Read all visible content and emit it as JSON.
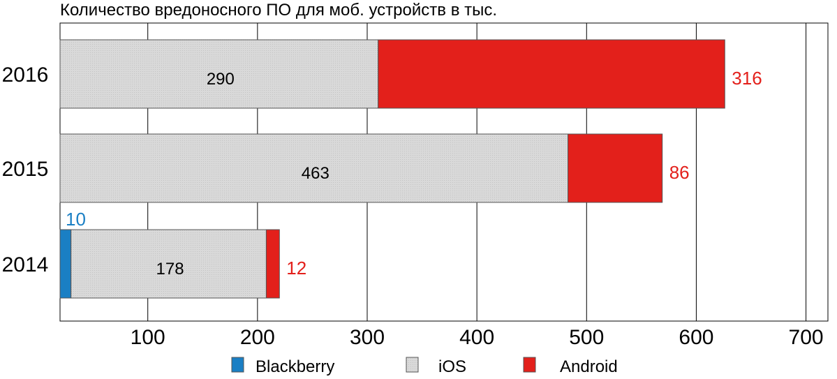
{
  "chart_data": {
    "type": "bar",
    "orientation": "horizontal",
    "stacked": true,
    "title": "Количество вредоносного ПО для моб. устройств в тыс.",
    "categories": [
      "2016",
      "2015",
      "2014"
    ],
    "series": [
      {
        "name": "Blackberry",
        "color": "#1a7fc4",
        "values": [
          null,
          null,
          10
        ],
        "labels": [
          "",
          "",
          "10"
        ]
      },
      {
        "name": "iOS",
        "color": "#d9d9d9",
        "values": [
          290,
          463,
          178
        ],
        "labels": [
          "290",
          "463",
          "178"
        ]
      },
      {
        "name": "Android",
        "color": "#e3201b",
        "values": [
          316,
          86,
          12
        ],
        "labels": [
          "316",
          "86",
          "12"
        ]
      }
    ],
    "xlim": [
      20,
      720
    ],
    "xticks": [
      100,
      200,
      300,
      400,
      500,
      600,
      700
    ],
    "grid": true,
    "legend": "bottom"
  }
}
